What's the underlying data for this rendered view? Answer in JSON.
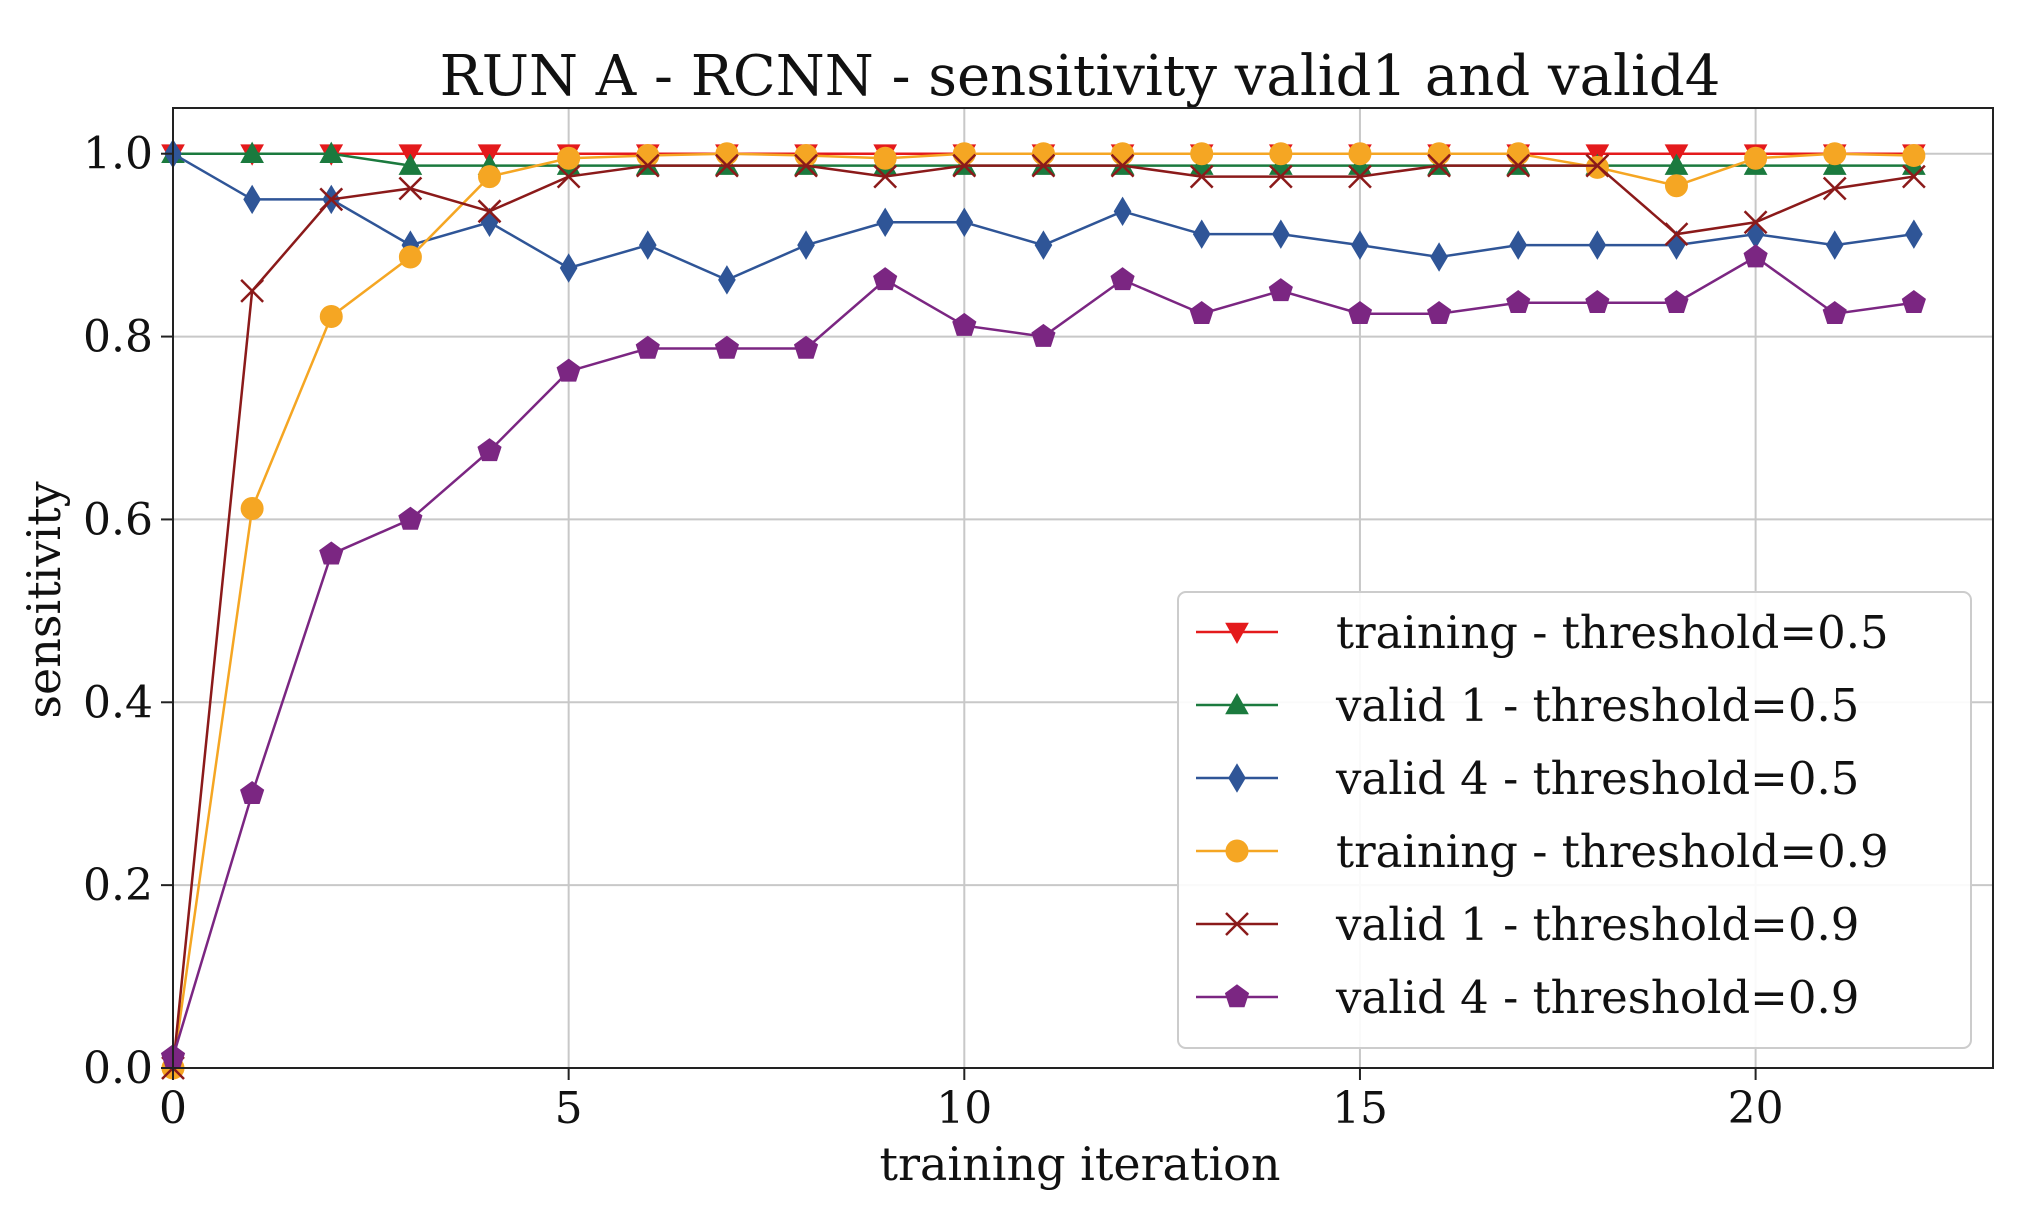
{
  "chart_data": {
    "type": "line",
    "title": "RUN A - RCNN - sensitivity valid1 and valid4",
    "xlabel": "training iteration",
    "ylabel": "sensitivity",
    "xlim": [
      0,
      23
    ],
    "ylim": [
      0.0,
      1.05
    ],
    "xticks": [
      0,
      5,
      10,
      15,
      20
    ],
    "xtick_labels": [
      "0",
      "5",
      "10",
      "15",
      "20"
    ],
    "yticks": [
      0.0,
      0.2,
      0.4,
      0.6,
      0.8,
      1.0
    ],
    "ytick_labels": [
      "0.0",
      "0.2",
      "0.4",
      "0.6",
      "0.8",
      "1.0"
    ],
    "grid": true,
    "legend_position": "lower-right",
    "x": [
      0,
      1,
      2,
      3,
      4,
      5,
      6,
      7,
      8,
      9,
      10,
      11,
      12,
      13,
      14,
      15,
      16,
      17,
      18,
      19,
      20,
      21,
      22
    ],
    "series": [
      {
        "name": "training - threshold=0.5",
        "color": "#e41a1c",
        "marker": "triangle-down",
        "values": [
          1.0,
          1.0,
          1.0,
          1.0,
          1.0,
          1.0,
          1.0,
          1.0,
          1.0,
          1.0,
          1.0,
          1.0,
          1.0,
          1.0,
          1.0,
          1.0,
          1.0,
          1.0,
          1.0,
          1.0,
          1.0,
          1.0,
          1.0
        ]
      },
      {
        "name": "valid 1 - threshold=0.5",
        "color": "#1b7a3e",
        "marker": "triangle-up",
        "values": [
          1.0,
          1.0,
          1.0,
          0.987,
          0.987,
          0.987,
          0.987,
          0.987,
          0.987,
          0.987,
          0.987,
          0.987,
          0.987,
          0.987,
          0.987,
          0.987,
          0.987,
          0.987,
          0.987,
          0.987,
          0.987,
          0.987,
          0.987
        ]
      },
      {
        "name": "valid 4 - threshold=0.5",
        "color": "#2f5597",
        "marker": "diamond",
        "values": [
          1.0,
          0.95,
          0.95,
          0.9,
          0.925,
          0.875,
          0.9,
          0.862,
          0.9,
          0.925,
          0.925,
          0.9,
          0.937,
          0.912,
          0.912,
          0.9,
          0.887,
          0.9,
          0.9,
          0.9,
          0.912,
          0.9,
          0.912
        ]
      },
      {
        "name": "training - threshold=0.9",
        "color": "#f5a623",
        "marker": "circle",
        "values": [
          0.0,
          0.612,
          0.822,
          0.887,
          0.975,
          0.995,
          0.998,
          1.0,
          0.998,
          0.995,
          1.0,
          1.0,
          1.0,
          1.0,
          1.0,
          1.0,
          1.0,
          1.0,
          0.985,
          0.965,
          0.995,
          1.0,
          0.998
        ]
      },
      {
        "name": "valid 1 - threshold=0.9",
        "color": "#8b1a1a",
        "marker": "x",
        "values": [
          0.0,
          0.85,
          0.95,
          0.962,
          0.937,
          0.975,
          0.987,
          0.987,
          0.987,
          0.975,
          0.987,
          0.987,
          0.987,
          0.975,
          0.975,
          0.975,
          0.987,
          0.987,
          0.987,
          0.912,
          0.925,
          0.962,
          0.975
        ]
      },
      {
        "name": "valid 4 - threshold=0.9",
        "color": "#7b2682",
        "marker": "pentagon",
        "values": [
          0.012,
          0.3,
          0.562,
          0.6,
          0.675,
          0.762,
          0.787,
          0.787,
          0.787,
          0.862,
          0.812,
          0.8,
          0.862,
          0.825,
          0.85,
          0.825,
          0.825,
          0.837,
          0.837,
          0.837,
          0.887,
          0.825,
          0.837
        ]
      }
    ]
  }
}
